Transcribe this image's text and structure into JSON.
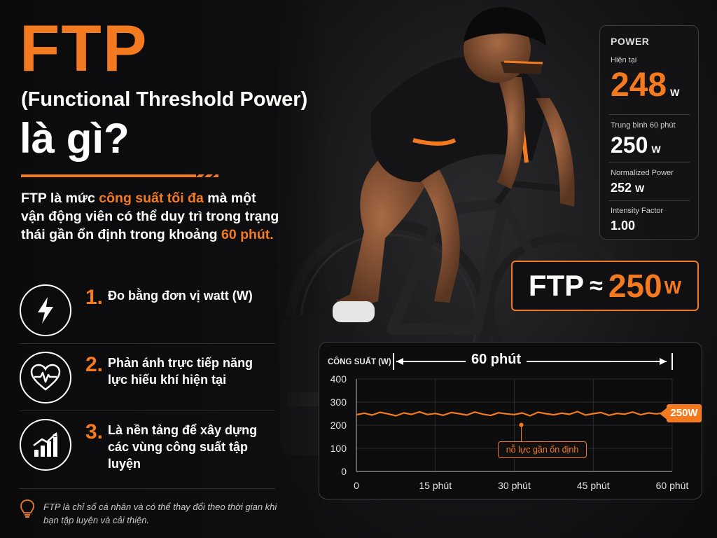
{
  "title": {
    "main": "FTP",
    "subtitle": "(Functional Threshold Power)",
    "question": "là gì?"
  },
  "intro": {
    "part1": "FTP là mức ",
    "highlight1": "công suất tối đa",
    "part2": " mà một vận động viên có thể duy trì trong trạng thái gần ổn định trong khoảng ",
    "highlight2": "60 phút."
  },
  "features": [
    {
      "number": "1.",
      "text": "Đo bằng đơn vị watt (W)",
      "icon": "lightning-icon"
    },
    {
      "number": "2.",
      "text": "Phản ánh trực tiếp năng lực hiếu khí hiện tại",
      "icon": "heart-pulse-icon"
    },
    {
      "number": "3.",
      "text": "Là nền tảng để xây dựng các vùng công suất tập luyện",
      "icon": "growth-chart-icon"
    }
  ],
  "note": {
    "icon": "lightbulb-icon",
    "text": "FTP là chỉ số cá nhân và có thể thay đổi theo thời gian khi bạn tập luyện và cải thiện."
  },
  "power_panel": {
    "title": "POWER",
    "current": {
      "label": "Hiện tại",
      "value": "248",
      "unit": "W"
    },
    "average": {
      "label": "Trung bình 60 phút",
      "value": "250",
      "unit": "W"
    },
    "normalized": {
      "label": "Normalized Power",
      "value": "252",
      "unit": "W"
    },
    "intensity": {
      "label": "Intensity Factor",
      "value": "1.00"
    }
  },
  "ftp_badge": {
    "label": "FTP",
    "approx": "≈",
    "value": "250",
    "unit": "W"
  },
  "colors": {
    "accent": "#f47a20",
    "background": "#0d0d0e",
    "text": "#ffffff"
  },
  "chart_data": {
    "type": "line",
    "ylabel": "CÔNG SUẤT (W)",
    "duration_label": "60 phút",
    "x_ticks": [
      0,
      15,
      30,
      45,
      60
    ],
    "x_tick_labels": [
      "0",
      "15 phút",
      "30 phút",
      "45 phút",
      "60 phút"
    ],
    "y_ticks": [
      0,
      100,
      200,
      300,
      400
    ],
    "xlim": [
      0,
      60
    ],
    "ylim": [
      0,
      400
    ],
    "grid": true,
    "series": [
      {
        "x": [
          0,
          1.5,
          3,
          4.5,
          6,
          7.5,
          9,
          10.5,
          12,
          13.5,
          15,
          16.5,
          18,
          19.5,
          21,
          22.5,
          24,
          25.5,
          27,
          28.5,
          30,
          31.5,
          33,
          34.5,
          36,
          37.5,
          39,
          40.5,
          42,
          43.5,
          45,
          46.5,
          48,
          49.5,
          51,
          52.5,
          54,
          55.5,
          57,
          58.5,
          60
        ],
        "values": [
          245,
          252,
          244,
          256,
          249,
          241,
          253,
          247,
          258,
          246,
          251,
          243,
          255,
          250,
          244,
          257,
          248,
          242,
          254,
          249,
          246,
          253,
          241,
          256,
          250,
          245,
          252,
          247,
          259,
          244,
          250,
          255,
          243,
          251,
          248,
          257,
          245,
          253,
          249,
          254,
          250
        ]
      }
    ],
    "annotation": "nỗ lực gần ổn định",
    "end_label": "250W"
  }
}
